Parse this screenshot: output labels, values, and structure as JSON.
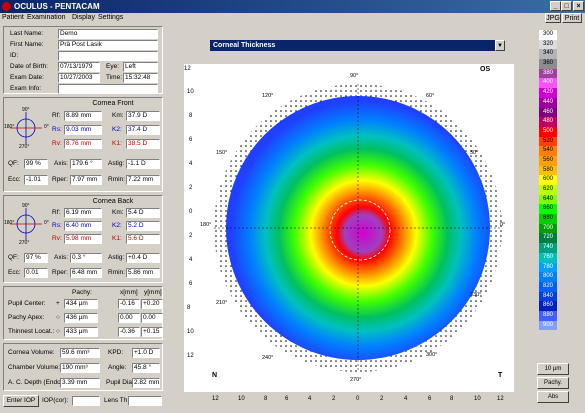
{
  "window": {
    "title": "OCULUS - PENTACAM",
    "min": "_",
    "max": "□",
    "close": "×"
  },
  "menu": {
    "items": [
      "Patient",
      "Examination",
      "Display",
      "Settings"
    ],
    "jpg": "JPG",
    "print": "Print"
  },
  "patient": {
    "last_name_label": "Last Name:",
    "last_name": "Demo",
    "first_name_label": "First Name:",
    "first_name": "Prä Post Lasik",
    "id_label": "ID:",
    "id": "",
    "dob_label": "Date of Birth:",
    "dob": "07/13/1979",
    "eye_label": "Eye:",
    "eye": "Left",
    "exam_date_label": "Exam Date:",
    "exam_date": "10/27/2003",
    "time_label": "Time:",
    "time": "15:32:48",
    "exam_info_label": "Exam Info:",
    "exam_info": ""
  },
  "cornea_front": {
    "title": "Cornea Front",
    "rf_label": "Rf:",
    "rf": "8.89 mm",
    "kf_label": "Km:",
    "km": "37.9 D",
    "rs_label": "Rs:",
    "rs": "9.03 mm",
    "ks_label": "K2:",
    "k2": "37.4 D",
    "rv_label": "Rv:",
    "rv": "8.76 mm",
    "kv_label": "K1:",
    "k1": "38.5 D",
    "qf_label": "QF:",
    "qf": "99 %",
    "axis_label": "Axis:",
    "axis": "179.6 °",
    "astig_label": "Astig:",
    "astig": "-1.1 D",
    "ecc_label": "Ecc:",
    "ecc": "-1.01",
    "rper_label": "Rper:",
    "rper": "7.97 mm",
    "rmin_label": "Rmin:",
    "rmin": "7.22 mm",
    "angles": [
      "90°",
      "0°",
      "180°",
      "270°"
    ]
  },
  "cornea_back": {
    "title": "Cornea Back",
    "rf_label": "Rf:",
    "rf": "6.19 mm",
    "kf_label": "Km:",
    "km": "5.4 D",
    "rs_label": "Rs:",
    "rs": "6.40 mm",
    "ks_label": "K2:",
    "k2": "5.2 D",
    "rv_label": "Rv:",
    "rv": "5.98 mm",
    "kv_label": "K1:",
    "k1": "5.6 D",
    "qf_label": "QF:",
    "qf": "97 %",
    "axis_label": "Axis:",
    "axis": "0.3 °",
    "astig_label": "Astig:",
    "astig": "+0.4 D",
    "ecc_label": "Ecc:",
    "ecc": "0.01",
    "rper_label": "Rper:",
    "rper": "6.48 mm",
    "rmin_label": "Rmin:",
    "rmin": "5.86 mm",
    "angles": [
      "90°",
      "0°",
      "180°",
      "270°"
    ]
  },
  "pachy": {
    "col_pachy": "Pachy:",
    "col_x": "x[mm]",
    "col_y": "y[mm]",
    "rows": [
      {
        "label": "Pupil Center:",
        "sym": "+",
        "pachy": "434 µm",
        "x": "-0.16",
        "y": "+0.20"
      },
      {
        "label": "Pachy Apex:",
        "sym": "○",
        "pachy": "436 µm",
        "x": "0.00",
        "y": "0.00"
      },
      {
        "label": "Thinnest Locat.:",
        "sym": "○",
        "pachy": "433 µm",
        "x": "-0.36",
        "y": "+0.15"
      }
    ]
  },
  "chamber": {
    "volume_label": "Cornea Volume:",
    "volume": "59.6 mm³",
    "kpd_label": "KPD:",
    "kpd": "+1.0 D",
    "chamber_label": "Chamber Volume:",
    "chamber": "190 mm³",
    "angle_label": "Angle:",
    "angle": "45.8 °",
    "acd_label": "A. C. Depth (Endo.):",
    "acd": "3.39 mm",
    "pupil_label": "Pupil Dia:",
    "pupil": "2.82 mm"
  },
  "bottom": {
    "enter_iop": "Enter IOP",
    "iop_cor": "IOP(cor):",
    "lens_th": "Lens Th.:"
  },
  "map": {
    "selector": "Corneal Thickness",
    "label_od": "OS",
    "label_n": "N",
    "label_t": "T",
    "axis_ticks_left": [
      "12",
      "10",
      "8",
      "6",
      "4",
      "2",
      "0",
      "2",
      "4",
      "6",
      "8",
      "10",
      "12"
    ],
    "axis_ticks_bottom": [
      "12",
      "10",
      "8",
      "6",
      "4",
      "2",
      "0",
      "2",
      "4",
      "6",
      "8",
      "10",
      "12"
    ],
    "angle_labels": [
      "90°",
      "60°",
      "30°",
      "0°",
      "330°",
      "300°",
      "270°",
      "240°",
      "210°",
      "180°",
      "150°",
      "120°"
    ]
  },
  "scale": {
    "values": [
      "300",
      "320",
      "340",
      "360",
      "380",
      "400",
      "420",
      "440",
      "460",
      "480",
      "500",
      "520",
      "540",
      "560",
      "580",
      "600",
      "620",
      "640",
      "660",
      "680",
      "700",
      "720",
      "740",
      "760",
      "780",
      "800",
      "820",
      "840",
      "860",
      "880",
      "900"
    ],
    "colors": [
      "#ffffff",
      "#dcdcdc",
      "#b4b4b4",
      "#8c8c8c",
      "#a040a0",
      "#ff50ff",
      "#d000d0",
      "#a000a0",
      "#800080",
      "#c00060",
      "#ff0000",
      "#ff4000",
      "#ff8000",
      "#ffa000",
      "#ffc000",
      "#ffff00",
      "#c0ff00",
      "#80ff00",
      "#00ff00",
      "#00d000",
      "#00a000",
      "#008040",
      "#00a080",
      "#00c0c0",
      "#00a0ff",
      "#0080ff",
      "#0060ff",
      "#0040e0",
      "#0020c0",
      "#4060ff",
      "#80a0ff"
    ],
    "unit_btn": "10 µm",
    "pachy_btn": "Pachy.",
    "abs_btn": "Abs"
  }
}
